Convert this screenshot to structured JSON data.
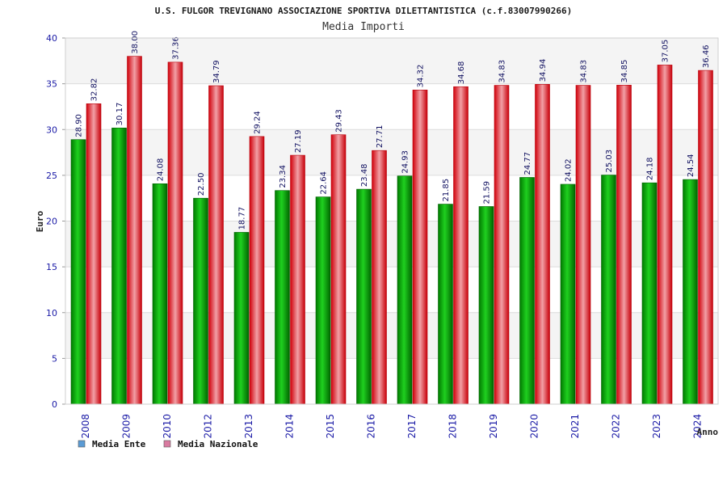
{
  "chart_data": {
    "type": "bar",
    "title": "U.S. FULGOR TREVIGNANO ASSOCIAZIONE SPORTIVA DILETTANTISTICA (c.f.83007990266)",
    "subtitle": "Media Importi",
    "xlabel": "Anno",
    "ylabel": "Euro",
    "ylim": [
      0,
      40
    ],
    "yticks": [
      0,
      5,
      10,
      15,
      20,
      25,
      30,
      35,
      40
    ],
    "grid": true,
    "legend_position": "bottom-left",
    "categories": [
      "2008",
      "2009",
      "2010",
      "2012",
      "2013",
      "2014",
      "2015",
      "2016",
      "2017",
      "2018",
      "2019",
      "2020",
      "2021",
      "2022",
      "2023",
      "2024"
    ],
    "series": [
      {
        "name": "Media Ente",
        "legend_color": "#5b9bd5",
        "bar_color": "#00b000",
        "values": [
          28.9,
          30.17,
          24.08,
          22.5,
          18.77,
          23.34,
          22.64,
          23.48,
          24.93,
          21.85,
          21.59,
          24.77,
          24.02,
          25.03,
          24.18,
          24.54
        ],
        "labels": [
          "28.90",
          "30.17",
          "24.08",
          "22.50",
          "18.77",
          "23.34",
          "22.64",
          "23.48",
          "24.93",
          "21.85",
          "21.59",
          "24.77",
          "24.02",
          "25.03",
          "24.18",
          "24.54"
        ]
      },
      {
        "name": "Media Nazionale",
        "legend_color": "#d97aa0",
        "bar_color": "#e8141e",
        "values": [
          32.82,
          38.0,
          37.36,
          34.79,
          29.24,
          27.19,
          29.43,
          27.71,
          34.32,
          34.68,
          34.83,
          34.94,
          34.83,
          34.85,
          37.05,
          36.46
        ],
        "labels": [
          "32.82",
          "38.00",
          "37.36",
          "34.79",
          "29.24",
          "27.19",
          "29.43",
          "27.71",
          "34.32",
          "34.68",
          "34.83",
          "34.94",
          "34.83",
          "34.85",
          "37.05",
          "36.46"
        ]
      }
    ]
  }
}
